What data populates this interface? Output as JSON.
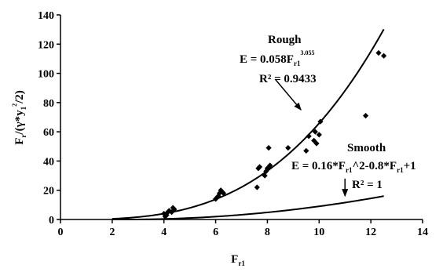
{
  "chart_data": {
    "type": "scatter",
    "title": "",
    "xlabel": {
      "main": "F",
      "sub": "r1"
    },
    "ylabel": {
      "p1": "F",
      "p1_sub": "r",
      "p2": "/(γ*y",
      "p2_sub": "1",
      "p2_sup": "2",
      "p3": "/2)"
    },
    "xlim": [
      0,
      14
    ],
    "ylim": [
      0,
      140
    ],
    "x_ticks": [
      "0",
      "2",
      "4",
      "6",
      "8",
      "10",
      "12",
      "14"
    ],
    "y_ticks": [
      "0",
      "20",
      "40",
      "60",
      "80",
      "100",
      "120",
      "140"
    ],
    "grid": false,
    "legend": "none",
    "series": [
      {
        "kind": "points",
        "marker": "diamond",
        "color": "#000000",
        "points": [
          [
            4.0,
            4
          ],
          [
            4.05,
            2
          ],
          [
            4.1,
            3
          ],
          [
            4.15,
            5
          ],
          [
            4.2,
            6
          ],
          [
            4.3,
            5
          ],
          [
            4.35,
            8
          ],
          [
            4.4,
            7
          ],
          [
            6.0,
            14
          ],
          [
            6.05,
            15
          ],
          [
            6.1,
            16
          ],
          [
            6.15,
            18
          ],
          [
            6.2,
            20
          ],
          [
            6.25,
            19
          ],
          [
            6.3,
            18
          ],
          [
            7.6,
            22
          ],
          [
            7.65,
            35
          ],
          [
            7.7,
            36
          ],
          [
            7.9,
            30
          ],
          [
            7.95,
            33
          ],
          [
            8.0,
            35
          ],
          [
            8.05,
            49
          ],
          [
            8.1,
            37
          ],
          [
            8.8,
            49
          ],
          [
            9.5,
            47
          ],
          [
            9.6,
            57
          ],
          [
            9.8,
            54
          ],
          [
            9.85,
            60
          ],
          [
            9.9,
            52
          ],
          [
            10.0,
            58
          ],
          [
            10.05,
            67
          ],
          [
            11.8,
            71
          ],
          [
            12.3,
            114
          ],
          [
            12.5,
            112
          ]
        ]
      },
      {
        "kind": "curve",
        "name": "Rough",
        "equation": "E = 0.058·x^3.055",
        "coef": 0.058,
        "exp": 3.055,
        "x_range": [
          2,
          12.5
        ],
        "color": "#000000"
      },
      {
        "kind": "curve",
        "name": "Smooth",
        "equation": "E = 0.16x^2 - 0.8x + 1",
        "poly": [
          0.16,
          -0.8,
          1
        ],
        "x_range": [
          2,
          12.5
        ],
        "color": "#000000"
      }
    ],
    "annotations": [
      {
        "id": "rough",
        "label": "Rough",
        "eq_prefix": "E = 0.058F",
        "eq_sub": "r1",
        "eq_sup": "3.055",
        "r2_text": "R² = 0.9433",
        "arrow_from": [
          8.3,
          96
        ],
        "arrow_to": [
          9.3,
          75
        ]
      },
      {
        "id": "smooth",
        "label": "Smooth",
        "eq_p1": "E = 0.16*F",
        "eq_p1_sub": "r1",
        "eq_p2": "^2-0.8*F",
        "eq_p2_sub": "r1",
        "eq_p3": "+1",
        "r2_text": "R² = 1",
        "arrow_from": [
          11.0,
          28
        ],
        "arrow_to": [
          11.0,
          16
        ]
      }
    ]
  }
}
